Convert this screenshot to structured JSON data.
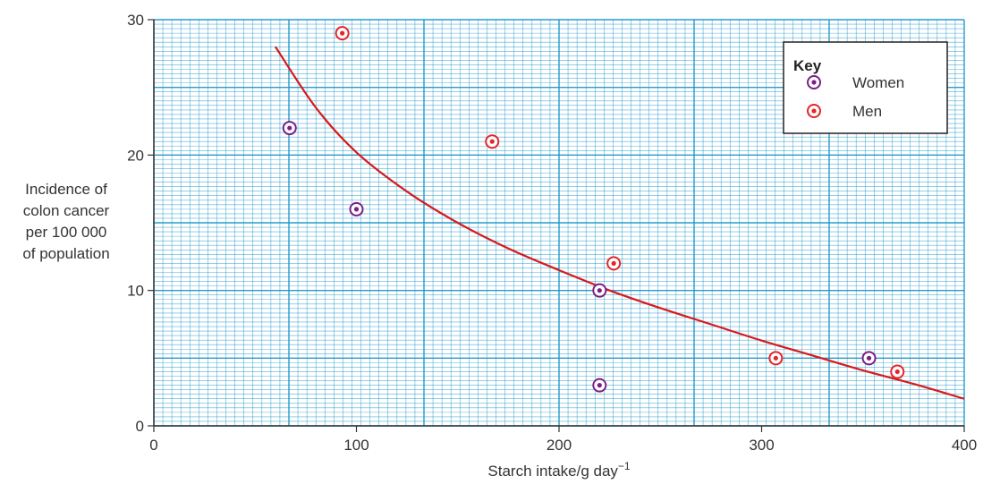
{
  "chart_data": {
    "type": "scatter",
    "xlabel": "Starch intake/g day",
    "xlabel_sup": "−1",
    "ylabel": [
      "Incidence of",
      "colon cancer",
      "per 100 000",
      "of population"
    ],
    "xlim": [
      0,
      400
    ],
    "ylim": [
      0,
      30
    ],
    "x_ticks": [
      "0",
      "100",
      "200",
      "300",
      "400"
    ],
    "y_ticks": [
      "0",
      "10",
      "20",
      "30"
    ],
    "grid": true,
    "legend_title": "Key",
    "legend_position": "top-right",
    "series": [
      {
        "name": "Women",
        "color": "#7b1f86",
        "points": [
          [
            67,
            22
          ],
          [
            100,
            16
          ],
          [
            220,
            10
          ],
          [
            220,
            3
          ],
          [
            353,
            5
          ]
        ]
      },
      {
        "name": "Men",
        "color": "#e3262b",
        "points": [
          [
            93,
            29
          ],
          [
            167,
            21
          ],
          [
            227,
            12
          ],
          [
            307,
            5
          ],
          [
            367,
            4
          ]
        ]
      }
    ],
    "trend_line": {
      "color": "#d7191c",
      "points": [
        [
          60,
          28
        ],
        [
          80,
          23.5
        ],
        [
          100,
          20.2
        ],
        [
          125,
          17.3
        ],
        [
          150,
          15.0
        ],
        [
          175,
          13.1
        ],
        [
          200,
          11.5
        ],
        [
          225,
          10.0
        ],
        [
          250,
          8.7
        ],
        [
          275,
          7.5
        ],
        [
          300,
          6.3
        ],
        [
          325,
          5.2
        ],
        [
          350,
          4.1
        ],
        [
          375,
          3.1
        ],
        [
          400,
          2.0
        ]
      ]
    },
    "colors": {
      "grid": "#1b96c9",
      "axis": "#333333"
    }
  }
}
